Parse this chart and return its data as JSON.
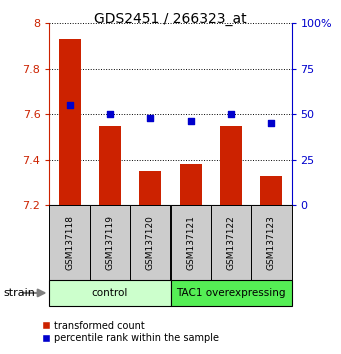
{
  "title": "GDS2451 / 266323_at",
  "samples": [
    "GSM137118",
    "GSM137119",
    "GSM137120",
    "GSM137121",
    "GSM137122",
    "GSM137123"
  ],
  "bar_values": [
    7.93,
    7.55,
    7.35,
    7.38,
    7.55,
    7.33
  ],
  "bar_bottom": 7.2,
  "percentile_right": [
    55,
    50,
    48,
    46,
    50,
    45
  ],
  "bar_color": "#cc2200",
  "percentile_color": "#0000cc",
  "ylim_left": [
    7.2,
    8.0
  ],
  "ylim_right": [
    0,
    100
  ],
  "yticks_left": [
    7.2,
    7.4,
    7.6,
    7.8,
    8.0
  ],
  "yticks_right": [
    0,
    25,
    50,
    75,
    100
  ],
  "ytick_labels_left": [
    "7.2",
    "7.4",
    "7.6",
    "7.8",
    "8"
  ],
  "ytick_labels_right": [
    "0",
    "25",
    "50",
    "75",
    "100%"
  ],
  "groups": [
    {
      "label": "control",
      "start": 0,
      "end": 3,
      "color": "#ccffcc"
    },
    {
      "label": "TAC1 overexpressing",
      "start": 3,
      "end": 6,
      "color": "#55ee55"
    }
  ],
  "sample_box_color": "#cccccc",
  "strain_label": "strain",
  "legend_bar_label": "transformed count",
  "legend_pct_label": "percentile rank within the sample",
  "bar_width": 0.55
}
